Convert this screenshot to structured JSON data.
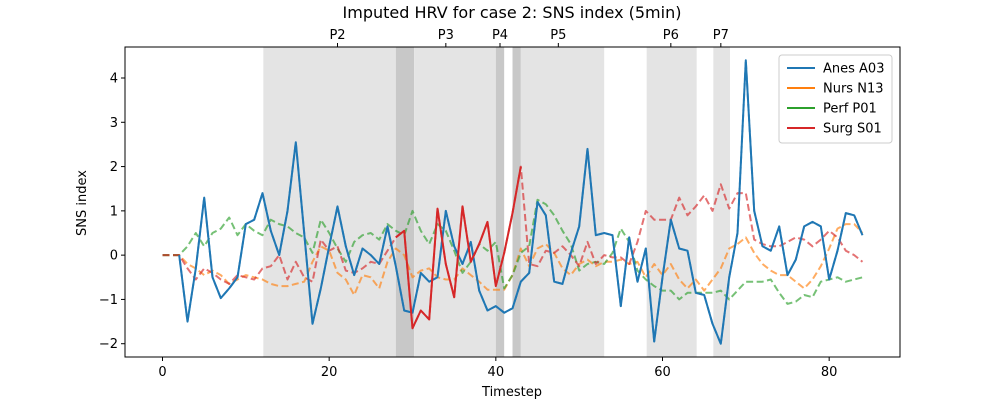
{
  "chart_data": {
    "type": "line",
    "title": "Imputed HRV for case 2: SNS index (5min)",
    "xlabel": "Timestep",
    "ylabel": "SNS index",
    "xlim": [
      -4.5,
      88.5
    ],
    "ylim": [
      -2.3,
      4.7
    ],
    "xticks": [
      0,
      20,
      40,
      60,
      80
    ],
    "yticks": [
      -2,
      -1,
      0,
      1,
      2,
      3,
      4
    ],
    "legend_position": "top-right",
    "shaded_regions": [
      {
        "x0": 12.1,
        "x1": 28.0,
        "shade": "light"
      },
      {
        "x0": 28.0,
        "x1": 30.2,
        "shade": "dark"
      },
      {
        "x0": 30.2,
        "x1": 40.0,
        "shade": "light"
      },
      {
        "x0": 40.0,
        "x1": 41.0,
        "shade": "dark"
      },
      {
        "x0": 42.0,
        "x1": 43.0,
        "shade": "dark"
      },
      {
        "x0": 43.0,
        "x1": 53.0,
        "shade": "light"
      },
      {
        "x0": 58.1,
        "x1": 64.1,
        "shade": "light"
      },
      {
        "x0": 66.1,
        "x1": 68.1,
        "shade": "light"
      }
    ],
    "phase_markers": [
      {
        "label": "P2",
        "x": 21
      },
      {
        "label": "P3",
        "x": 34
      },
      {
        "label": "P4",
        "x": 40.5
      },
      {
        "label": "P5",
        "x": 47.5
      },
      {
        "label": "P6",
        "x": 61
      },
      {
        "label": "P7",
        "x": 67
      }
    ],
    "x": [
      0,
      1,
      2,
      3,
      4,
      5,
      6,
      7,
      8,
      9,
      10,
      11,
      12,
      13,
      14,
      15,
      16,
      17,
      18,
      19,
      20,
      21,
      22,
      23,
      24,
      25,
      26,
      27,
      28,
      29,
      30,
      31,
      32,
      33,
      34,
      35,
      36,
      37,
      38,
      39,
      40,
      41,
      42,
      43,
      44,
      45,
      46,
      47,
      48,
      49,
      50,
      51,
      52,
      53,
      54,
      55,
      56,
      57,
      58,
      59,
      60,
      61,
      62,
      63,
      64,
      65,
      66,
      67,
      68,
      69,
      70,
      71,
      72,
      73,
      74,
      75,
      76,
      77,
      78,
      79,
      80,
      81,
      82,
      83,
      84
    ],
    "series": [
      {
        "name": "Anes A03",
        "color": "#1f77b4",
        "values": [
          0,
          0,
          0,
          -1.5,
          -0.3,
          1.3,
          -0.5,
          -0.97,
          -0.75,
          -0.5,
          0.7,
          0.8,
          1.4,
          0.55,
          0,
          1,
          2.55,
          0.5,
          -1.55,
          -0.75,
          0.2,
          1.1,
          0.2,
          -0.45,
          0.15,
          0,
          -0.2,
          0.65,
          -0.25,
          -1.25,
          -1.3,
          -0.4,
          -0.6,
          -0.5,
          1,
          0.2,
          -0.2,
          0.3,
          -0.8,
          -1.25,
          -1.15,
          -1.3,
          -1.2,
          -0.6,
          -0.4,
          1.2,
          0.9,
          -0.6,
          -0.65,
          0.05,
          0.65,
          2.4,
          0.45,
          0.5,
          0.45,
          -1.15,
          0.4,
          -0.6,
          0.15,
          -1.95,
          -0.5,
          0.8,
          0.15,
          0.1,
          -0.85,
          -0.9,
          -1.55,
          -2,
          -0.5,
          0.5,
          4.4,
          1,
          0.2,
          0.1,
          0.65,
          -0.45,
          -0.1,
          0.65,
          0.75,
          0.65,
          -0.55,
          0.1,
          0.95,
          0.9,
          0.45
        ]
      },
      {
        "name": "Nurs N13",
        "color": "#ff7f0e",
        "values": [
          0,
          0,
          0,
          -0.2,
          -0.3,
          -0.45,
          -0.35,
          -0.45,
          -0.65,
          -0.55,
          -0.45,
          -0.5,
          -0.55,
          -0.65,
          -0.7,
          -0.7,
          -0.65,
          -0.6,
          -0.15,
          0.2,
          0.1,
          -0.4,
          -0.55,
          -0.9,
          -0.45,
          -0.5,
          -0.75,
          -0.15,
          0.15,
          0,
          -0.5,
          -0.35,
          -0.3,
          -0.5,
          -0.55,
          -0.55,
          -0.3,
          -0.45,
          -0.6,
          -0.78,
          -0.78,
          -0.78,
          -0.45,
          0.15,
          -0.25,
          0.15,
          0.25,
          0.05,
          -0.3,
          -0.45,
          -0.2,
          -0.1,
          -0.25,
          -0.15,
          -0.15,
          -0.1,
          -0.2,
          -0.15,
          -0.5,
          -0.2,
          -0.45,
          -0.2,
          -0.55,
          -0.75,
          -0.55,
          -0.8,
          -0.55,
          -0.3,
          0.15,
          0.25,
          0.4,
          0.05,
          -0.2,
          -0.35,
          -0.45,
          -0.45,
          -0.6,
          -0.75,
          -0.55,
          -0.25,
          0.15,
          0.6,
          0.7,
          0.7,
          0.5
        ]
      },
      {
        "name": "Perf P01",
        "color": "#2ca02c",
        "values": [
          0,
          0,
          0,
          0.2,
          0.5,
          0.2,
          0.5,
          0.6,
          0.85,
          0.45,
          0.7,
          0.55,
          0.45,
          0.8,
          0.7,
          0.65,
          0.5,
          0.4,
          0.05,
          0.8,
          0.5,
          0.15,
          -0.15,
          0.3,
          0.45,
          0.5,
          0.35,
          0.7,
          0.55,
          0.45,
          1,
          0.55,
          0.25,
          0.7,
          0.55,
          0.1,
          -0.4,
          -0.15,
          0.25,
          0.1,
          0.3,
          -0.75,
          -0.45,
          0.05,
          0.2,
          1.25,
          1.15,
          0.9,
          0.55,
          0.25,
          -0.35,
          -0.2,
          -0.15,
          -0.2,
          0.05,
          0.6,
          0.3,
          -0.35,
          -0.55,
          -0.7,
          -0.8,
          -0.8,
          -1,
          -0.85,
          -0.85,
          -0.85,
          -0.85,
          -0.8,
          -1,
          -0.8,
          -0.6,
          -0.6,
          -0.6,
          -0.55,
          -0.85,
          -1.1,
          -1.05,
          -0.9,
          -0.95,
          -0.6,
          -0.55,
          -0.5,
          -0.6,
          -0.55,
          -0.5
        ]
      },
      {
        "name": "Surg S01",
        "color": "#d62728",
        "values": [
          0,
          0,
          0,
          -0.3,
          -0.55,
          -0.3,
          -0.4,
          -0.55,
          -0.65,
          -0.45,
          -0.5,
          -0.55,
          -0.3,
          -0.25,
          0,
          -0.55,
          -0.15,
          -0.5,
          -0.6,
          0.35,
          0.1,
          0.2,
          -0.35,
          -0.4,
          -0.3,
          -0.15,
          -0.2,
          0.1,
          0.4,
          0.55,
          -1.65,
          -1.25,
          -1.45,
          1.05,
          -0.2,
          -0.95,
          1.1,
          -0.15,
          0.25,
          0.75,
          -0.7,
          0.05,
          0.95,
          2.0,
          -0.2,
          -0.25,
          0.1,
          0.05,
          0.2,
          0,
          -0.25,
          0.3,
          -0.2,
          0,
          -0.05,
          -0.05,
          -0.2,
          0.3,
          1,
          0.8,
          0.8,
          0.8,
          1.3,
          0.9,
          1.1,
          1.35,
          1,
          1.6,
          1.05,
          1.4,
          1.4,
          0.35,
          0.25,
          0.2,
          0.2,
          0.3,
          0.4,
          0.35,
          0.2,
          0.35,
          0.55,
          0.4,
          0.1,
          0,
          -0.15
        ]
      }
    ],
    "solid_segments": [
      {
        "series": "Anes A03",
        "from": 2,
        "to": 84
      },
      {
        "series": "Surg S01",
        "from": 28,
        "to": 43
      }
    ]
  }
}
